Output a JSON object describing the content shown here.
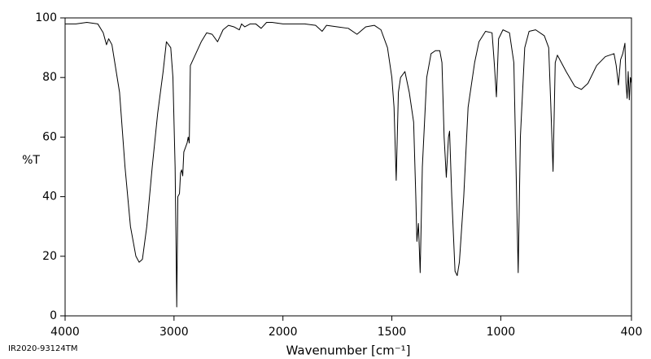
{
  "chart_data": {
    "type": "line",
    "ylabel": "%T",
    "xlabel": "Wavenumber [cm⁻¹]",
    "footnote": "IR2020-93124TM",
    "x_reversed": true,
    "xscale_break": 2000,
    "xscale_break_factor": 2,
    "xlim": [
      4000,
      400
    ],
    "xticks": [
      4000,
      3000,
      2000,
      1500,
      1000,
      400
    ],
    "ylim": [
      0,
      100
    ],
    "yticks": [
      0,
      20,
      40,
      60,
      80,
      100
    ],
    "color": "#000000",
    "x": [
      4000,
      3900,
      3800,
      3700,
      3650,
      3620,
      3600,
      3570,
      3500,
      3450,
      3400,
      3350,
      3320,
      3290,
      3250,
      3200,
      3150,
      3100,
      3070,
      3030,
      3010,
      2990,
      2980,
      2975,
      2965,
      2950,
      2940,
      2930,
      2920,
      2910,
      2880,
      2870,
      2860,
      2850,
      2800,
      2750,
      2700,
      2650,
      2600,
      2550,
      2500,
      2450,
      2400,
      2380,
      2350,
      2300,
      2250,
      2200,
      2150,
      2100,
      2000,
      1900,
      1850,
      1820,
      1800,
      1750,
      1700,
      1660,
      1620,
      1580,
      1550,
      1520,
      1500,
      1490,
      1480,
      1470,
      1460,
      1440,
      1420,
      1400,
      1390,
      1385,
      1378,
      1370,
      1360,
      1340,
      1320,
      1300,
      1280,
      1270,
      1260,
      1250,
      1240,
      1235,
      1225,
      1210,
      1200,
      1190,
      1170,
      1150,
      1120,
      1100,
      1070,
      1040,
      1030,
      1020,
      1010,
      990,
      960,
      940,
      930,
      920,
      910,
      890,
      870,
      840,
      800,
      780,
      770,
      760,
      750,
      740,
      700,
      660,
      630,
      600,
      560,
      520,
      480,
      470,
      460,
      450,
      440,
      430,
      425,
      420,
      415,
      410,
      405,
      400
    ],
    "values": [
      98,
      98,
      98.5,
      98,
      95,
      91,
      93,
      91,
      75,
      50,
      30,
      20,
      18,
      19,
      30,
      50,
      68,
      82,
      92,
      90,
      80,
      50,
      20,
      3,
      40,
      41,
      48,
      49,
      47,
      55,
      58,
      60,
      58,
      84,
      88,
      92,
      95,
      94.5,
      92,
      96,
      97.5,
      97,
      96,
      98,
      97,
      98,
      98,
      96.5,
      98.5,
      98.5,
      98,
      98,
      97.5,
      95.5,
      97.5,
      97,
      96.5,
      94.5,
      97,
      97.5,
      96,
      90,
      80,
      70,
      45.5,
      75,
      80,
      82,
      75,
      65,
      40,
      25,
      31,
      14.5,
      50,
      80,
      88,
      89,
      89,
      85,
      60,
      46.5,
      60,
      62,
      40,
      15,
      13.5,
      18,
      40,
      70,
      85,
      92,
      95.5,
      95,
      85,
      73.5,
      93,
      96,
      95,
      85,
      50,
      14.5,
      60,
      90,
      95.5,
      96,
      94,
      90,
      70,
      48.5,
      85,
      87.5,
      82,
      77,
      76,
      78,
      84,
      87,
      88,
      84,
      77.5,
      86,
      88,
      91.5,
      78,
      73,
      82,
      72.5,
      80,
      78
    ]
  }
}
